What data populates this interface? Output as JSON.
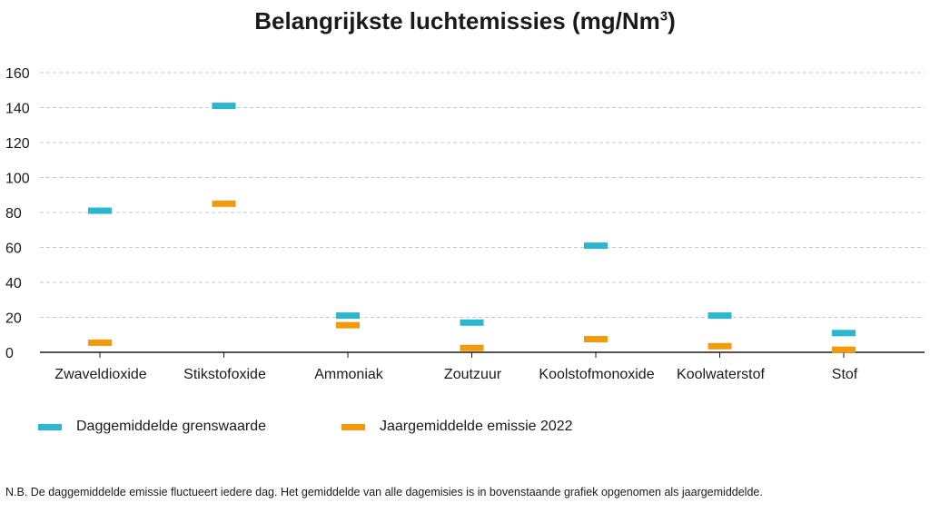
{
  "chart_data": {
    "type": "scatter",
    "title": "Belangrijkste luchtemissies (mg/Nm",
    "title_superscript": "3",
    "title_suffix": ")",
    "categories": [
      "Zwaveldioxide",
      "Stikstofoxide",
      "Ammoniak",
      "Zoutzuur",
      "Koolstofmonoxide",
      "Koolwaterstof",
      "Stof"
    ],
    "series": [
      {
        "name": "Daggemiddelde grenswaarde",
        "color": "#2bb7cf",
        "values": [
          81,
          141,
          21,
          17,
          61,
          21,
          11
        ]
      },
      {
        "name": "Jaargemiddelde emissie 2022",
        "color": "#f29a0c",
        "values": [
          5.5,
          85,
          15.5,
          2.5,
          7.5,
          3.5,
          1.5
        ]
      }
    ],
    "y_ticks": [
      0,
      20,
      40,
      60,
      80,
      100,
      120,
      140,
      160
    ],
    "ylim": [
      0,
      160
    ],
    "grid": true,
    "legend_position": "bottom-left",
    "marker": "horizontal-dash"
  },
  "note": "N.B. De daggemiddelde emissie fluctueert iedere dag. Het gemiddelde van alle dagemisies is in bovenstaande grafiek opgenomen als jaargemiddelde."
}
